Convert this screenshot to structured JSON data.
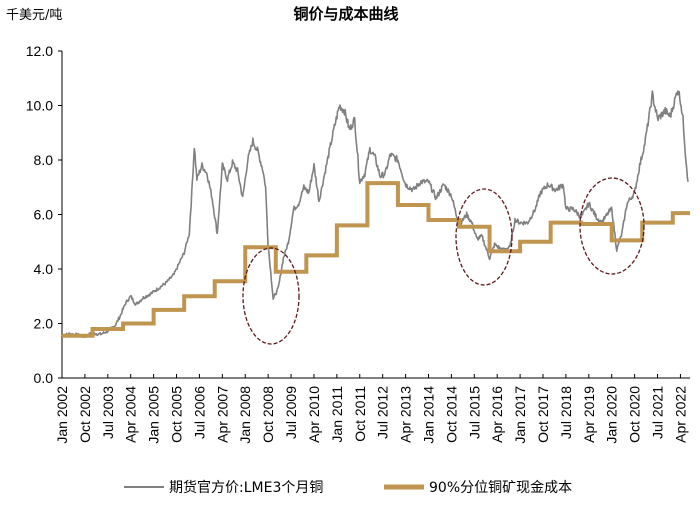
{
  "chart_data": {
    "type": "line",
    "title": "铜价与成本曲线",
    "ylabel": "千美元/吨",
    "xlabel": "",
    "ylim": [
      0,
      12
    ],
    "yticks": [
      "0.0",
      "2.0",
      "4.0",
      "6.0",
      "8.0",
      "10.0",
      "12.0"
    ],
    "xlim": [
      "2002-01",
      "2022-07"
    ],
    "xticks": [
      "Jan 2002",
      "Oct 2002",
      "Jul 2003",
      "Apr 2004",
      "Jan 2005",
      "Oct 2005",
      "Jul 2006",
      "Apr 2007",
      "Jan 2008",
      "Oct 2008",
      "Jul 2009",
      "Apr 2010",
      "Jan 2011",
      "Oct 2011",
      "Jul 2012",
      "Apr 2013",
      "Jan 2014",
      "Oct 2014",
      "Jul 2015",
      "Apr 2016",
      "Jan 2017",
      "Oct 2017",
      "Jul 2018",
      "Apr 2019",
      "Jan 2020",
      "Oct 2020",
      "Jul 2021",
      "Apr 2022"
    ],
    "grid": false,
    "legend_position": "bottom",
    "series": [
      {
        "name": "期货官方价:LME3个月铜",
        "color": "#808080",
        "style": "line",
        "points": [
          [
            "2002-01",
            1.55
          ],
          [
            "2002-04",
            1.62
          ],
          [
            "2002-07",
            1.58
          ],
          [
            "2002-10",
            1.52
          ],
          [
            "2003-01",
            1.65
          ],
          [
            "2003-04",
            1.6
          ],
          [
            "2003-07",
            1.72
          ],
          [
            "2003-10",
            1.95
          ],
          [
            "2003-12",
            2.3
          ],
          [
            "2004-02",
            2.75
          ],
          [
            "2004-04",
            3.0
          ],
          [
            "2004-06",
            2.7
          ],
          [
            "2004-09",
            2.95
          ],
          [
            "2004-12",
            3.1
          ],
          [
            "2005-03",
            3.3
          ],
          [
            "2005-06",
            3.5
          ],
          [
            "2005-09",
            3.8
          ],
          [
            "2005-11",
            4.2
          ],
          [
            "2006-01",
            4.6
          ],
          [
            "2006-03",
            5.3
          ],
          [
            "2006-04",
            6.8
          ],
          [
            "2006-05",
            8.5
          ],
          [
            "2006-06",
            7.3
          ],
          [
            "2006-08",
            7.8
          ],
          [
            "2006-10",
            7.5
          ],
          [
            "2006-12",
            6.6
          ],
          [
            "2007-02",
            5.3
          ],
          [
            "2007-04",
            7.8
          ],
          [
            "2007-06",
            7.3
          ],
          [
            "2007-08",
            7.9
          ],
          [
            "2007-10",
            7.6
          ],
          [
            "2007-12",
            6.6
          ],
          [
            "2008-02",
            8.0
          ],
          [
            "2008-04",
            8.7
          ],
          [
            "2008-06",
            8.3
          ],
          [
            "2008-08",
            7.6
          ],
          [
            "2008-09",
            7.0
          ],
          [
            "2008-10",
            4.9
          ],
          [
            "2008-12",
            2.9
          ],
          [
            "2009-02",
            3.3
          ],
          [
            "2009-04",
            4.4
          ],
          [
            "2009-06",
            5.0
          ],
          [
            "2009-08",
            6.2
          ],
          [
            "2009-10",
            6.4
          ],
          [
            "2009-12",
            7.0
          ],
          [
            "2010-02",
            6.8
          ],
          [
            "2010-04",
            7.8
          ],
          [
            "2010-06",
            6.5
          ],
          [
            "2010-08",
            7.4
          ],
          [
            "2010-10",
            8.3
          ],
          [
            "2010-12",
            9.2
          ],
          [
            "2011-02",
            10.0
          ],
          [
            "2011-04",
            9.8
          ],
          [
            "2011-06",
            9.1
          ],
          [
            "2011-08",
            9.5
          ],
          [
            "2011-10",
            7.2
          ],
          [
            "2011-12",
            7.5
          ],
          [
            "2012-02",
            8.4
          ],
          [
            "2012-04",
            8.1
          ],
          [
            "2012-06",
            7.4
          ],
          [
            "2012-08",
            7.5
          ],
          [
            "2012-10",
            8.2
          ],
          [
            "2013-01",
            8.0
          ],
          [
            "2013-04",
            7.1
          ],
          [
            "2013-07",
            6.9
          ],
          [
            "2013-10",
            7.2
          ],
          [
            "2014-01",
            7.2
          ],
          [
            "2014-04",
            6.6
          ],
          [
            "2014-07",
            7.1
          ],
          [
            "2014-10",
            6.7
          ],
          [
            "2015-01",
            5.6
          ],
          [
            "2015-04",
            6.0
          ],
          [
            "2015-06",
            5.7
          ],
          [
            "2015-08",
            5.1
          ],
          [
            "2015-10",
            5.2
          ],
          [
            "2016-01",
            4.4
          ],
          [
            "2016-03",
            4.9
          ],
          [
            "2016-06",
            4.7
          ],
          [
            "2016-09",
            4.8
          ],
          [
            "2016-11",
            5.8
          ],
          [
            "2017-01",
            5.7
          ],
          [
            "2017-04",
            5.7
          ],
          [
            "2017-07",
            6.2
          ],
          [
            "2017-09",
            6.8
          ],
          [
            "2017-12",
            7.1
          ],
          [
            "2018-03",
            6.9
          ],
          [
            "2018-06",
            7.1
          ],
          [
            "2018-07",
            6.2
          ],
          [
            "2018-10",
            6.2
          ],
          [
            "2019-01",
            5.9
          ],
          [
            "2019-04",
            6.4
          ],
          [
            "2019-07",
            5.9
          ],
          [
            "2019-09",
            5.7
          ],
          [
            "2019-12",
            6.1
          ],
          [
            "2020-01",
            6.2
          ],
          [
            "2020-03",
            4.7
          ],
          [
            "2020-05",
            5.3
          ],
          [
            "2020-07",
            6.4
          ],
          [
            "2020-10",
            6.8
          ],
          [
            "2020-12",
            7.8
          ],
          [
            "2021-02",
            8.6
          ],
          [
            "2021-05",
            10.4
          ],
          [
            "2021-07",
            9.5
          ],
          [
            "2021-10",
            9.8
          ],
          [
            "2021-12",
            9.6
          ],
          [
            "2022-03",
            10.6
          ],
          [
            "2022-04",
            10.2
          ],
          [
            "2022-05",
            9.5
          ],
          [
            "2022-06",
            8.2
          ],
          [
            "2022-07",
            7.2
          ]
        ]
      },
      {
        "name": "90%分位铜矿现金成本",
        "color": "#BF9550",
        "style": "step",
        "points": [
          [
            "2002-01",
            1.55
          ],
          [
            "2003-01",
            1.8
          ],
          [
            "2004-01",
            2.0
          ],
          [
            "2005-01",
            2.5
          ],
          [
            "2006-01",
            3.0
          ],
          [
            "2007-01",
            3.55
          ],
          [
            "2008-01",
            4.8
          ],
          [
            "2009-01",
            3.9
          ],
          [
            "2010-01",
            4.5
          ],
          [
            "2011-01",
            5.6
          ],
          [
            "2012-01",
            7.15
          ],
          [
            "2013-01",
            6.35
          ],
          [
            "2014-01",
            5.8
          ],
          [
            "2015-01",
            5.55
          ],
          [
            "2016-01",
            4.65
          ],
          [
            "2017-01",
            5.0
          ],
          [
            "2018-01",
            5.7
          ],
          [
            "2019-01",
            5.65
          ],
          [
            "2020-01",
            5.05
          ],
          [
            "2021-01",
            5.7
          ],
          [
            "2022-01",
            6.05
          ]
        ]
      }
    ]
  }
}
